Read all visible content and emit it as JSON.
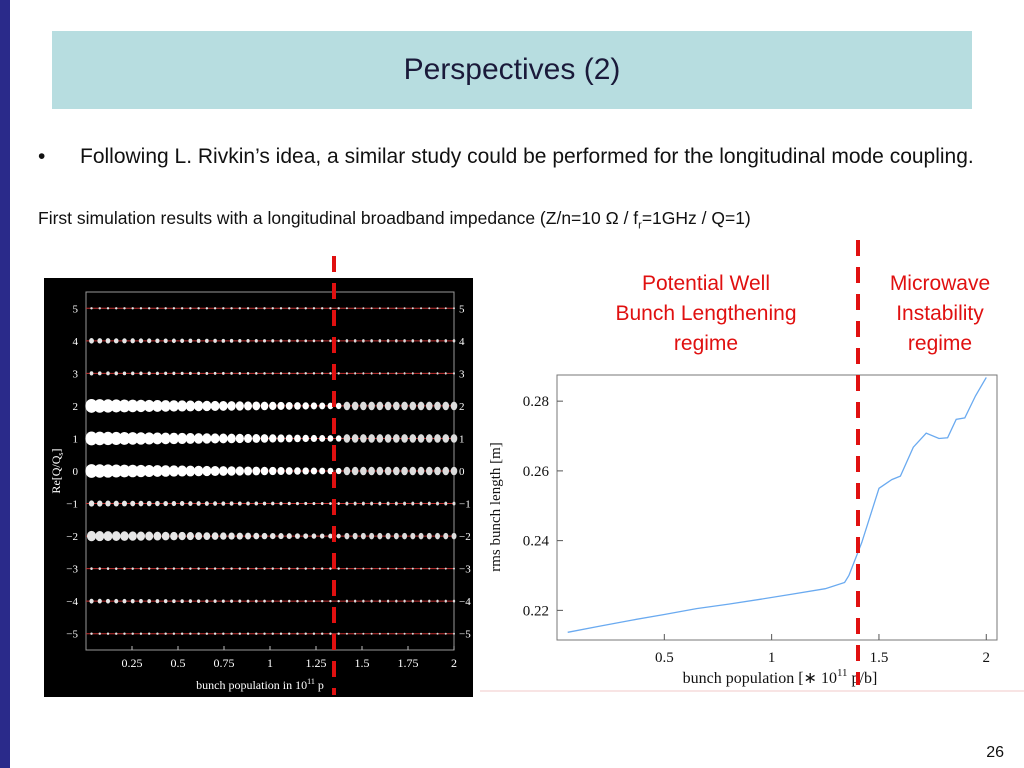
{
  "slide": {
    "title": "Perspectives (2)",
    "bullet_char": "•",
    "bullet_text": "Following L. Rivkin’s idea, a similar study could be performed for the longitudinal mode coupling.",
    "sub_pre": "First simulation results with a longitudinal broadband impedance (Z/n=10 ",
    "omega": "Ω",
    "sub_mid": " / f",
    "sub_r": "r",
    "sub_post": "=1GHz / Q=1)",
    "label_left": [
      "Potential Well",
      "Bunch Lengthening",
      "regime"
    ],
    "label_right": [
      "Microwave",
      "Instability",
      "regime"
    ],
    "page_number": "26",
    "colors": {
      "title_bg": "#b7dde0",
      "left_bar": "#2a2a8a",
      "annotation_red": "#e01010",
      "curve_blue": "#6aaaf0"
    }
  },
  "chart_data": [
    {
      "type": "scatter",
      "ylabel_main": "Re[Q/Q",
      "ylabel_sub": "s",
      "ylabel_close": "]",
      "xlabel_pre": "bunch population in 10",
      "xlabel_sup": "11",
      "xlabel_post": " p",
      "x_ticks": [
        "0.25",
        "0.5",
        "0.75",
        "1",
        "1.25",
        "1.5",
        "1.75",
        "2"
      ],
      "x_tick_values": [
        0.25,
        0.5,
        0.75,
        1,
        1.25,
        1.5,
        1.75,
        2
      ],
      "y_ticks": [
        "5",
        "4",
        "3",
        "2",
        "1",
        "0",
        "−1",
        "−2",
        "−3",
        "−4",
        "−5"
      ],
      "y_tick_values": [
        5,
        4,
        3,
        2,
        1,
        0,
        -1,
        -2,
        -3,
        -4,
        -5
      ],
      "xlim": [
        0,
        2
      ],
      "ylim": [
        -5.5,
        5.5
      ],
      "threshold_x": 1.38,
      "mode_amplitude": [
        {
          "mode": 5,
          "a": 0.15
        },
        {
          "mode": 4,
          "a": 0.4
        },
        {
          "mode": 3,
          "a": 0.3
        },
        {
          "mode": 2,
          "a": 1.0
        },
        {
          "mode": 1,
          "a": 1.0
        },
        {
          "mode": 0,
          "a": 1.0
        },
        {
          "mode": -1,
          "a": 0.45
        },
        {
          "mode": -2,
          "a": 0.75
        },
        {
          "mode": -3,
          "a": 0.2
        },
        {
          "mode": -4,
          "a": 0.35
        },
        {
          "mode": -5,
          "a": 0.12
        }
      ]
    },
    {
      "type": "line",
      "ylabel": "rms bunch length [m]",
      "xlabel": "bunch population  [",
      "xlabel_star": "∗",
      "xlabel_ten": " 10",
      "xlabel_sup": "11",
      "xlabel_end": " p/b]",
      "x_ticks": [
        "0.5",
        "1",
        "1.5",
        "2"
      ],
      "x_tick_values": [
        0.5,
        1,
        1.5,
        2
      ],
      "y_ticks": [
        "0.22",
        "0.24",
        "0.26",
        "0.28"
      ],
      "y_tick_values": [
        0.22,
        0.24,
        0.26,
        0.28
      ],
      "xlim": [
        0,
        2.05
      ],
      "ylim": [
        0.2115,
        0.2875
      ],
      "threshold_x": 1.35,
      "series": [
        {
          "x": [
            0.05,
            0.2,
            0.35,
            0.5,
            0.65,
            0.8,
            0.95,
            1.1,
            1.25,
            1.34,
            1.36,
            1.42,
            1.5,
            1.56,
            1.6,
            1.66,
            1.72,
            1.78,
            1.82,
            1.86,
            1.9,
            1.95,
            2.0
          ],
          "y": [
            0.2137,
            0.2155,
            0.2172,
            0.2188,
            0.2205,
            0.2218,
            0.2232,
            0.2247,
            0.2262,
            0.228,
            0.23,
            0.2395,
            0.255,
            0.2575,
            0.2585,
            0.2668,
            0.2708,
            0.2693,
            0.2695,
            0.2748,
            0.2752,
            0.2815,
            0.2868
          ]
        }
      ]
    }
  ]
}
